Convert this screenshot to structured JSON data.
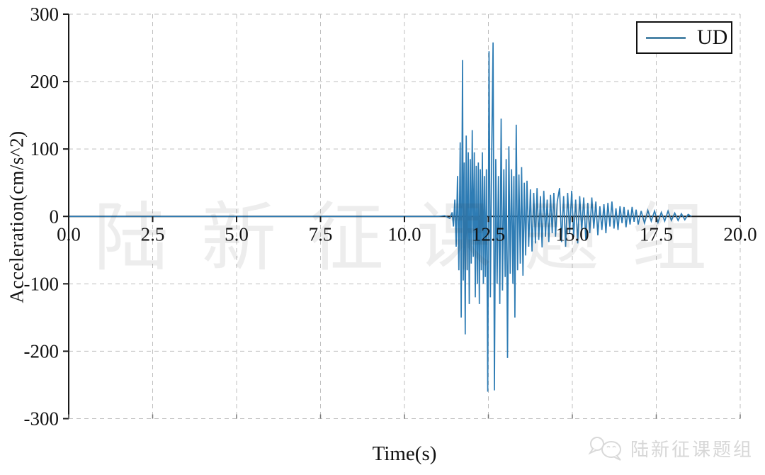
{
  "chart_data": {
    "type": "line",
    "title": "",
    "xlabel": "Time(s)",
    "ylabel": "Acceleration(cm/s^2)",
    "xlim": [
      0,
      20
    ],
    "ylim": [
      -300,
      300
    ],
    "x_tick_values": [
      0,
      2.5,
      5,
      7.5,
      10,
      12.5,
      15,
      17.5,
      20
    ],
    "x_tick_labels": [
      "0.0",
      "2.5",
      "5.0",
      "7.5",
      "10.0",
      "12.5",
      "15.0",
      "17.5",
      "20.0"
    ],
    "y_tick_values": [
      300,
      200,
      100,
      0,
      -100,
      -200,
      -300
    ],
    "y_tick_labels": [
      "300",
      "200",
      "100",
      "0",
      "-100",
      "-200",
      "-300"
    ],
    "grid": "dashed",
    "grid_color": "#bfbfbf",
    "axis_color": "#1a1a1a",
    "legend": {
      "position": "top-right",
      "entries": [
        {
          "label": "UD",
          "color": "#4e86a8"
        }
      ]
    },
    "series": [
      {
        "name": "UD",
        "color": "#2e7cb4",
        "points": [
          [
            0,
            0
          ],
          [
            1,
            0
          ],
          [
            2,
            0
          ],
          [
            3,
            0
          ],
          [
            4,
            0
          ],
          [
            5,
            0
          ],
          [
            6,
            0
          ],
          [
            7,
            0
          ],
          [
            8,
            0
          ],
          [
            9,
            0
          ],
          [
            10,
            0
          ],
          [
            10.5,
            0
          ],
          [
            11,
            0
          ],
          [
            11.2,
            1
          ],
          [
            11.35,
            -3
          ],
          [
            11.42,
            6
          ],
          [
            11.46,
            -15
          ],
          [
            11.5,
            25
          ],
          [
            11.54,
            -45
          ],
          [
            11.58,
            60
          ],
          [
            11.62,
            -80
          ],
          [
            11.66,
            110
          ],
          [
            11.69,
            -150
          ],
          [
            11.73,
            232
          ],
          [
            11.75,
            -95
          ],
          [
            11.78,
            80
          ],
          [
            11.81,
            -175
          ],
          [
            11.84,
            120
          ],
          [
            11.87,
            -80
          ],
          [
            11.9,
            95
          ],
          [
            11.93,
            -130
          ],
          [
            11.96,
            85
          ],
          [
            11.99,
            -70
          ],
          [
            12.02,
            128
          ],
          [
            12.05,
            -60
          ],
          [
            12.08,
            95
          ],
          [
            12.11,
            -120
          ],
          [
            12.14,
            75
          ],
          [
            12.17,
            -100
          ],
          [
            12.2,
            80
          ],
          [
            12.23,
            -130
          ],
          [
            12.26,
            70
          ],
          [
            12.29,
            -80
          ],
          [
            12.32,
            95
          ],
          [
            12.35,
            -100
          ],
          [
            12.38,
            60
          ],
          [
            12.41,
            -90
          ],
          [
            12.44,
            70
          ],
          [
            12.48,
            -260
          ],
          [
            12.52,
            245
          ],
          [
            12.56,
            -120
          ],
          [
            12.6,
            100
          ],
          [
            12.64,
            258
          ],
          [
            12.68,
            -258
          ],
          [
            12.72,
            85
          ],
          [
            12.76,
            -100
          ],
          [
            12.8,
            60
          ],
          [
            12.84,
            -130
          ],
          [
            12.88,
            145
          ],
          [
            12.92,
            -110
          ],
          [
            12.96,
            70
          ],
          [
            13.0,
            -90
          ],
          [
            13.03,
            85
          ],
          [
            13.07,
            -210
          ],
          [
            13.11,
            104
          ],
          [
            13.15,
            -85
          ],
          [
            13.19,
            70
          ],
          [
            13.23,
            -100
          ],
          [
            13.26,
            60
          ],
          [
            13.29,
            -150
          ],
          [
            13.33,
            136
          ],
          [
            13.37,
            -80
          ],
          [
            13.41,
            62
          ],
          [
            13.45,
            -70
          ],
          [
            13.49,
            73
          ],
          [
            13.53,
            -88
          ],
          [
            13.57,
            50
          ],
          [
            13.61,
            -58
          ],
          [
            13.65,
            53
          ],
          [
            13.7,
            -45
          ],
          [
            13.75,
            40
          ],
          [
            13.8,
            -52
          ],
          [
            13.85,
            35
          ],
          [
            13.9,
            -40
          ],
          [
            13.95,
            42
          ],
          [
            14.0,
            -35
          ],
          [
            14.05,
            30
          ],
          [
            14.1,
            -46
          ],
          [
            14.15,
            38
          ],
          [
            14.2,
            -30
          ],
          [
            14.25,
            25
          ],
          [
            14.3,
            -38
          ],
          [
            14.35,
            32
          ],
          [
            14.4,
            -25
          ],
          [
            14.45,
            35
          ],
          [
            14.5,
            -30
          ],
          [
            14.55,
            22
          ],
          [
            14.62,
            42
          ],
          [
            14.68,
            -38
          ],
          [
            14.74,
            30
          ],
          [
            14.8,
            -45
          ],
          [
            14.86,
            35
          ],
          [
            14.92,
            -25
          ],
          [
            14.98,
            38
          ],
          [
            15.04,
            -30
          ],
          [
            15.1,
            25
          ],
          [
            15.16,
            -40
          ],
          [
            15.22,
            30
          ],
          [
            15.28,
            -22
          ],
          [
            15.34,
            28
          ],
          [
            15.4,
            -35
          ],
          [
            15.46,
            20
          ],
          [
            15.52,
            -25
          ],
          [
            15.58,
            28
          ],
          [
            15.64,
            -18
          ],
          [
            15.7,
            22
          ],
          [
            15.76,
            -28
          ],
          [
            15.82,
            15
          ],
          [
            15.88,
            -20
          ],
          [
            15.94,
            18
          ],
          [
            16.0,
            -25
          ],
          [
            16.06,
            20
          ],
          [
            16.12,
            -15
          ],
          [
            16.18,
            22
          ],
          [
            16.24,
            -18
          ],
          [
            16.3,
            12
          ],
          [
            16.36,
            -20
          ],
          [
            16.42,
            15
          ],
          [
            16.48,
            -10
          ],
          [
            16.54,
            14
          ],
          [
            16.6,
            -16
          ],
          [
            16.66,
            10
          ],
          [
            16.72,
            -12
          ],
          [
            16.78,
            14
          ],
          [
            16.84,
            -8
          ],
          [
            16.9,
            10
          ],
          [
            16.96,
            -12
          ],
          [
            17.05,
            8
          ],
          [
            17.15,
            -10
          ],
          [
            17.25,
            9
          ],
          [
            17.35,
            -7
          ],
          [
            17.45,
            8
          ],
          [
            17.55,
            -9
          ],
          [
            17.65,
            6
          ],
          [
            17.75,
            -7
          ],
          [
            17.85,
            8
          ],
          [
            17.95,
            -6
          ],
          [
            18.05,
            5
          ],
          [
            18.15,
            -6
          ],
          [
            18.25,
            4
          ],
          [
            18.35,
            -5
          ],
          [
            18.45,
            3
          ],
          [
            18.55,
            0
          ]
        ]
      }
    ]
  },
  "watermark": {
    "center_text": "陆新征课题组",
    "badge_text": "陆新征课题组",
    "badge_icon": "wechat-bubbles-icon"
  }
}
